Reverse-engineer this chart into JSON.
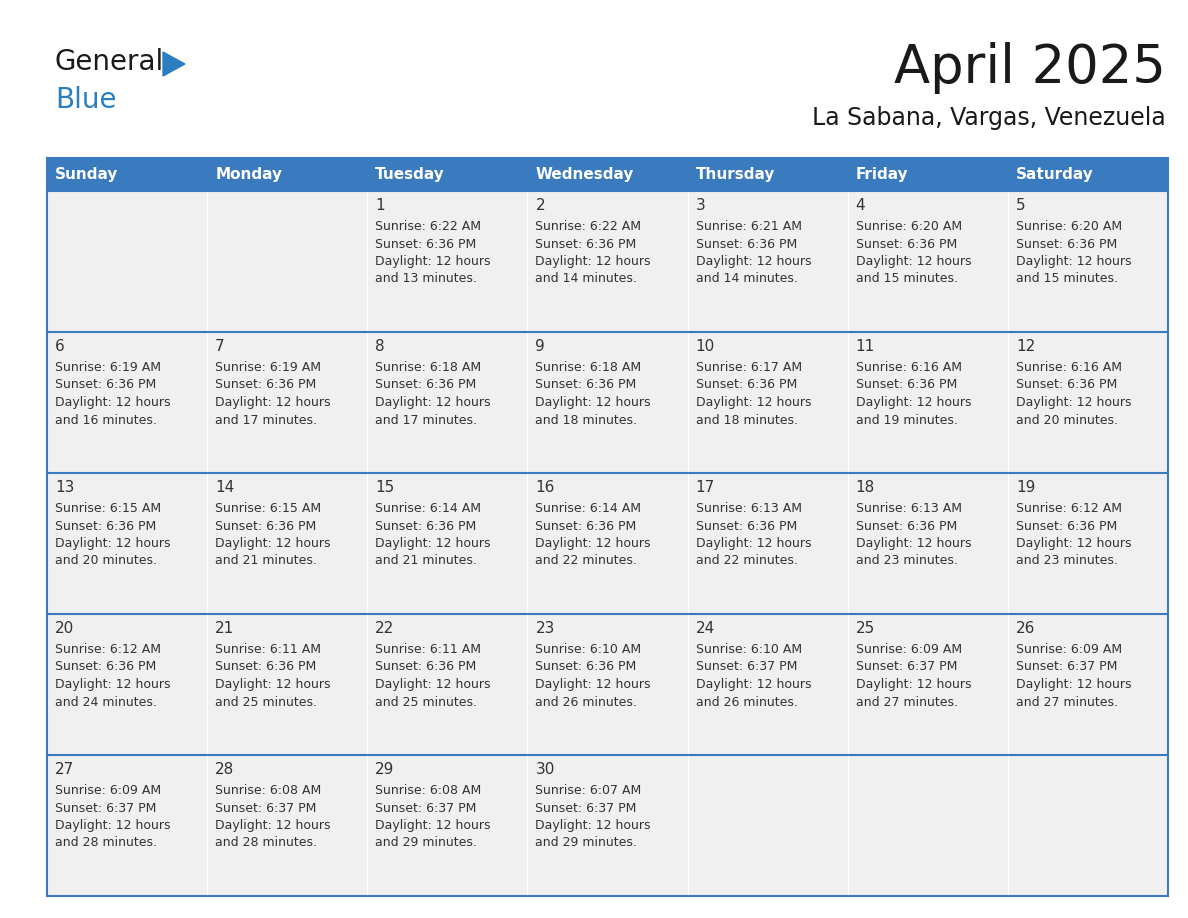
{
  "title": "April 2025",
  "subtitle": "La Sabana, Vargas, Venezuela",
  "header_bg": "#3a7abf",
  "header_text_color": "#ffffff",
  "day_names": [
    "Sunday",
    "Monday",
    "Tuesday",
    "Wednesday",
    "Thursday",
    "Friday",
    "Saturday"
  ],
  "row_bg": "#f0f0f0",
  "border_color": "#3a7abf",
  "text_color": "#333333",
  "days": [
    {
      "day": 1,
      "col": 2,
      "row": 0,
      "sunrise": "6:22 AM",
      "sunset": "6:36 PM",
      "daylight_mins": "13 minutes."
    },
    {
      "day": 2,
      "col": 3,
      "row": 0,
      "sunrise": "6:22 AM",
      "sunset": "6:36 PM",
      "daylight_mins": "14 minutes."
    },
    {
      "day": 3,
      "col": 4,
      "row": 0,
      "sunrise": "6:21 AM",
      "sunset": "6:36 PM",
      "daylight_mins": "14 minutes."
    },
    {
      "day": 4,
      "col": 5,
      "row": 0,
      "sunrise": "6:20 AM",
      "sunset": "6:36 PM",
      "daylight_mins": "15 minutes."
    },
    {
      "day": 5,
      "col": 6,
      "row": 0,
      "sunrise": "6:20 AM",
      "sunset": "6:36 PM",
      "daylight_mins": "15 minutes."
    },
    {
      "day": 6,
      "col": 0,
      "row": 1,
      "sunrise": "6:19 AM",
      "sunset": "6:36 PM",
      "daylight_mins": "16 minutes."
    },
    {
      "day": 7,
      "col": 1,
      "row": 1,
      "sunrise": "6:19 AM",
      "sunset": "6:36 PM",
      "daylight_mins": "17 minutes."
    },
    {
      "day": 8,
      "col": 2,
      "row": 1,
      "sunrise": "6:18 AM",
      "sunset": "6:36 PM",
      "daylight_mins": "17 minutes."
    },
    {
      "day": 9,
      "col": 3,
      "row": 1,
      "sunrise": "6:18 AM",
      "sunset": "6:36 PM",
      "daylight_mins": "18 minutes."
    },
    {
      "day": 10,
      "col": 4,
      "row": 1,
      "sunrise": "6:17 AM",
      "sunset": "6:36 PM",
      "daylight_mins": "18 minutes."
    },
    {
      "day": 11,
      "col": 5,
      "row": 1,
      "sunrise": "6:16 AM",
      "sunset": "6:36 PM",
      "daylight_mins": "19 minutes."
    },
    {
      "day": 12,
      "col": 6,
      "row": 1,
      "sunrise": "6:16 AM",
      "sunset": "6:36 PM",
      "daylight_mins": "20 minutes."
    },
    {
      "day": 13,
      "col": 0,
      "row": 2,
      "sunrise": "6:15 AM",
      "sunset": "6:36 PM",
      "daylight_mins": "20 minutes."
    },
    {
      "day": 14,
      "col": 1,
      "row": 2,
      "sunrise": "6:15 AM",
      "sunset": "6:36 PM",
      "daylight_mins": "21 minutes."
    },
    {
      "day": 15,
      "col": 2,
      "row": 2,
      "sunrise": "6:14 AM",
      "sunset": "6:36 PM",
      "daylight_mins": "21 minutes."
    },
    {
      "day": 16,
      "col": 3,
      "row": 2,
      "sunrise": "6:14 AM",
      "sunset": "6:36 PM",
      "daylight_mins": "22 minutes."
    },
    {
      "day": 17,
      "col": 4,
      "row": 2,
      "sunrise": "6:13 AM",
      "sunset": "6:36 PM",
      "daylight_mins": "22 minutes."
    },
    {
      "day": 18,
      "col": 5,
      "row": 2,
      "sunrise": "6:13 AM",
      "sunset": "6:36 PM",
      "daylight_mins": "23 minutes."
    },
    {
      "day": 19,
      "col": 6,
      "row": 2,
      "sunrise": "6:12 AM",
      "sunset": "6:36 PM",
      "daylight_mins": "23 minutes."
    },
    {
      "day": 20,
      "col": 0,
      "row": 3,
      "sunrise": "6:12 AM",
      "sunset": "6:36 PM",
      "daylight_mins": "24 minutes."
    },
    {
      "day": 21,
      "col": 1,
      "row": 3,
      "sunrise": "6:11 AM",
      "sunset": "6:36 PM",
      "daylight_mins": "25 minutes."
    },
    {
      "day": 22,
      "col": 2,
      "row": 3,
      "sunrise": "6:11 AM",
      "sunset": "6:36 PM",
      "daylight_mins": "25 minutes."
    },
    {
      "day": 23,
      "col": 3,
      "row": 3,
      "sunrise": "6:10 AM",
      "sunset": "6:36 PM",
      "daylight_mins": "26 minutes."
    },
    {
      "day": 24,
      "col": 4,
      "row": 3,
      "sunrise": "6:10 AM",
      "sunset": "6:37 PM",
      "daylight_mins": "26 minutes."
    },
    {
      "day": 25,
      "col": 5,
      "row": 3,
      "sunrise": "6:09 AM",
      "sunset": "6:37 PM",
      "daylight_mins": "27 minutes."
    },
    {
      "day": 26,
      "col": 6,
      "row": 3,
      "sunrise": "6:09 AM",
      "sunset": "6:37 PM",
      "daylight_mins": "27 minutes."
    },
    {
      "day": 27,
      "col": 0,
      "row": 4,
      "sunrise": "6:09 AM",
      "sunset": "6:37 PM",
      "daylight_mins": "28 minutes."
    },
    {
      "day": 28,
      "col": 1,
      "row": 4,
      "sunrise": "6:08 AM",
      "sunset": "6:37 PM",
      "daylight_mins": "28 minutes."
    },
    {
      "day": 29,
      "col": 2,
      "row": 4,
      "sunrise": "6:08 AM",
      "sunset": "6:37 PM",
      "daylight_mins": "29 minutes."
    },
    {
      "day": 30,
      "col": 3,
      "row": 4,
      "sunrise": "6:07 AM",
      "sunset": "6:37 PM",
      "daylight_mins": "29 minutes."
    }
  ],
  "logo_general_color": "#1a1a1a",
  "logo_blue_color": "#2b7fc1",
  "logo_triangle_color": "#2b7fc1",
  "fig_width": 11.88,
  "fig_height": 9.18
}
